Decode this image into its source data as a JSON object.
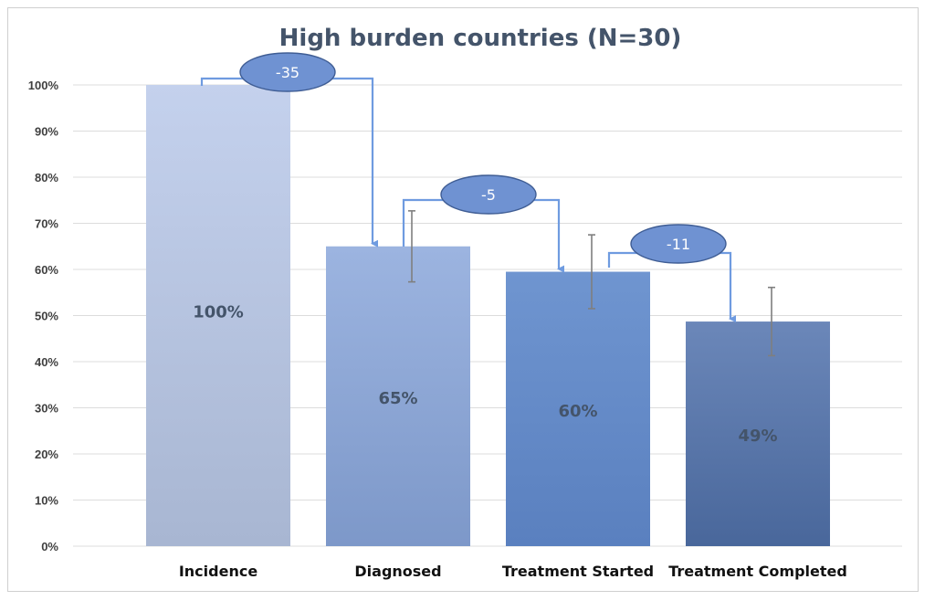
{
  "chart_data": {
    "type": "bar",
    "title": "High burden countries (N=30)",
    "categories": [
      "Incidence",
      "Diagnosed",
      "Treatment Started",
      "Treatment Completed"
    ],
    "values": [
      100,
      65,
      59.5,
      48.7
    ],
    "value_labels": [
      "100%",
      "65%",
      "60%",
      "49%"
    ],
    "error_bars": [
      null,
      [
        57.3,
        72.7
      ],
      [
        51.5,
        67.5
      ],
      [
        41.3,
        56.1
      ]
    ],
    "ylim": [
      0,
      100
    ],
    "yticks": [
      0,
      10,
      20,
      30,
      40,
      50,
      60,
      70,
      80,
      90,
      100
    ],
    "ytick_labels": [
      "0%",
      "10%",
      "20%",
      "30%",
      "40%",
      "50%",
      "60%",
      "70%",
      "80%",
      "90%",
      "100%"
    ],
    "grid": true,
    "legend": "none",
    "annotations": [
      {
        "label": "-35",
        "from": "Incidence",
        "to": "Diagnosed"
      },
      {
        "label": "-5",
        "from": "Diagnosed",
        "to": "Treatment Started"
      },
      {
        "label": "-11",
        "from": "Treatment Started",
        "to": "Treatment Completed"
      }
    ],
    "colors": {
      "bars": [
        [
          "#c4d1ed",
          "#a8b6d2"
        ],
        [
          "#9cb4e0",
          "#7d98c9"
        ],
        [
          "#6f95d0",
          "#5a80bf"
        ],
        [
          "#6b87b9",
          "#49679b"
        ]
      ],
      "annotation_fill": "#6f92d2",
      "annotation_stroke": "#3f5d94",
      "connector": "#6f9be0",
      "error_bar": "#7f7f7f",
      "grid": "#dcdcdc"
    }
  }
}
